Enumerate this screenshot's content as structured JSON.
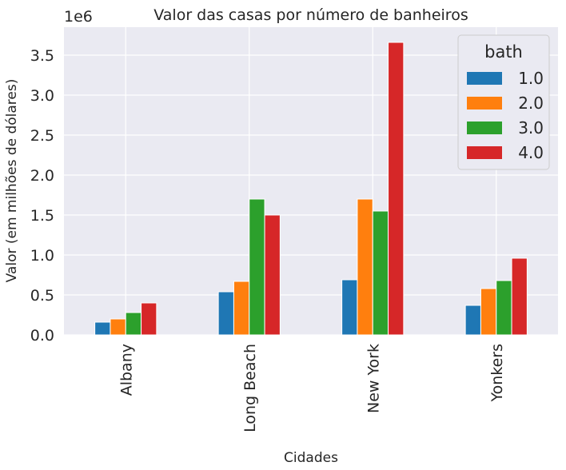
{
  "chart_data": {
    "type": "bar",
    "title": "Valor das casas por número de banheiros",
    "xlabel": "Cidades",
    "ylabel": "Valor (em milhões de dólares)",
    "offset_label": "1e6",
    "categories": [
      "Albany",
      "Long Beach",
      "New York",
      "Yonkers"
    ],
    "ylim": [
      0,
      3.85
    ],
    "yticks": [
      "0.0",
      "0.5",
      "1.0",
      "1.5",
      "2.0",
      "2.5",
      "3.0",
      "3.5"
    ],
    "grid": true,
    "legend": {
      "title": "bath",
      "placement": "top-right"
    },
    "series": [
      {
        "name": "1.0",
        "color": "#1f77b4",
        "values": [
          0.16,
          0.54,
          0.69,
          0.37
        ]
      },
      {
        "name": "2.0",
        "color": "#ff7f0e",
        "values": [
          0.2,
          0.67,
          1.7,
          0.58
        ]
      },
      {
        "name": "3.0",
        "color": "#2ca02c",
        "values": [
          0.28,
          1.7,
          1.55,
          0.68
        ]
      },
      {
        "name": "4.0",
        "color": "#d62728",
        "values": [
          0.4,
          1.5,
          3.66,
          0.96
        ]
      }
    ],
    "colors": {
      "plot_background": "#eaeaf2",
      "grid": "#ffffff",
      "text": "#262626"
    }
  }
}
